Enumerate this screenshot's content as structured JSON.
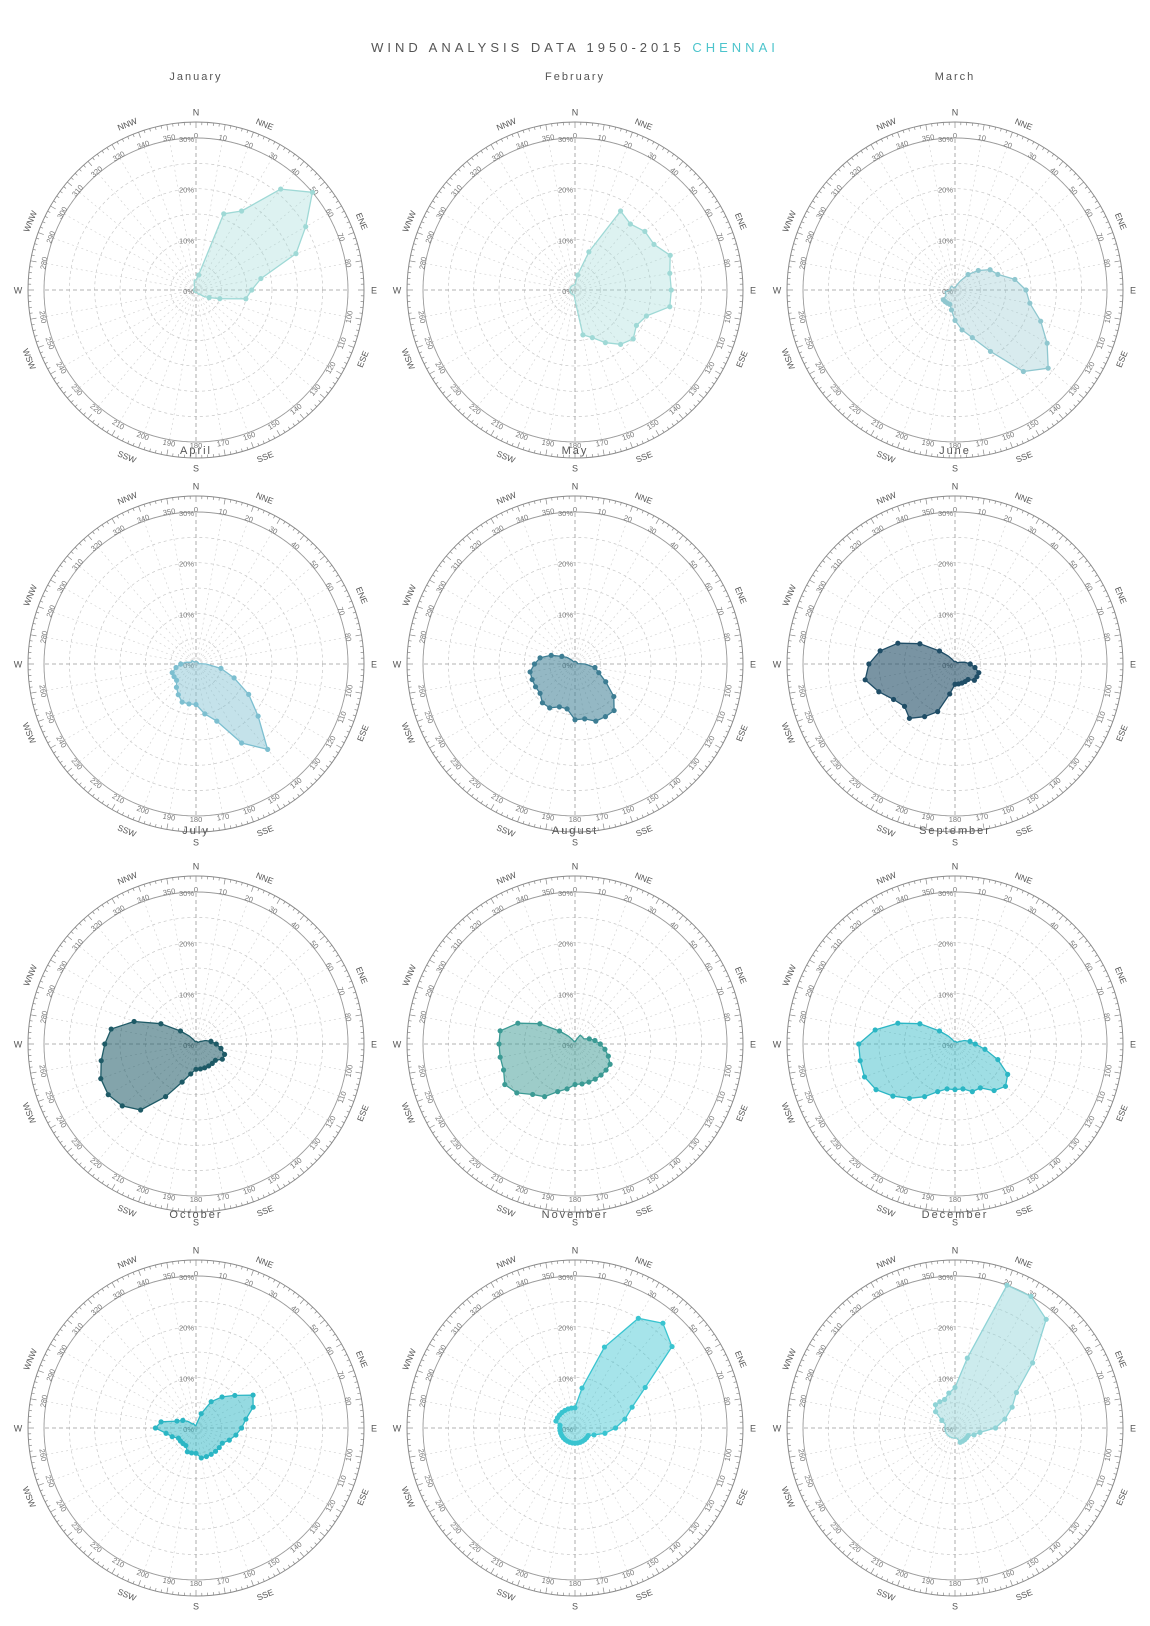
{
  "page": {
    "title_main": "WIND ANALYSIS DATA 1950-2015",
    "title_city": "CHENNAI"
  },
  "chart_common": {
    "type": "radar",
    "radial_ticks": [
      "0%",
      "10%",
      "20%",
      "30%"
    ],
    "radial_max": 30,
    "degree_ticks": [
      0,
      10,
      20,
      30,
      40,
      50,
      60,
      70,
      80,
      90,
      100,
      110,
      120,
      130,
      140,
      150,
      160,
      170,
      180,
      190,
      200,
      210,
      220,
      230,
      240,
      250,
      260,
      270,
      280,
      290,
      300,
      310,
      320,
      330,
      340,
      350
    ],
    "compass_labels": [
      {
        "label": "N",
        "deg": 0
      },
      {
        "label": "NNE",
        "deg": 22.5
      },
      {
        "label": "ENE",
        "deg": 67.5
      },
      {
        "label": "E",
        "deg": 90
      },
      {
        "label": "ESE",
        "deg": 112.5
      },
      {
        "label": "SSE",
        "deg": 157.5
      },
      {
        "label": "S",
        "deg": 180
      },
      {
        "label": "SSW",
        "deg": 202.5
      },
      {
        "label": "WSW",
        "deg": 247.5
      },
      {
        "label": "W",
        "deg": 270
      },
      {
        "label": "WNW",
        "deg": 292.5
      },
      {
        "label": "NNW",
        "deg": 337.5
      }
    ],
    "direction_degrees": [
      0,
      10,
      20,
      30,
      40,
      50,
      60,
      70,
      80,
      90,
      100,
      110,
      120,
      130,
      140,
      150,
      160,
      170,
      180,
      190,
      200,
      210,
      220,
      230,
      240,
      250,
      260,
      270,
      280,
      290,
      300,
      310,
      320,
      330,
      340,
      350
    ],
    "grid": true
  },
  "chart_data": [
    {
      "type": "radar",
      "title": "January",
      "color": "#9fd9d6",
      "fill_opacity": 0.35,
      "values": [
        2,
        3,
        16,
        18,
        26,
        30,
        25,
        21,
        13,
        11,
        10,
        5,
        3,
        2,
        1,
        1,
        0.5,
        0.5,
        0.5,
        0.5,
        0.5,
        0.5,
        0.5,
        0.5,
        0.5,
        0.5,
        0.5,
        0.5,
        0.5,
        0.5,
        0.5,
        0.5,
        0.5,
        0.5,
        1,
        2
      ]
    },
    {
      "type": "radar",
      "title": "February",
      "color": "#9fd9d6",
      "fill_opacity": 0.35,
      "values": [
        1,
        3,
        8,
        18,
        17,
        18,
        18,
        20,
        19,
        19,
        19,
        15,
        14,
        15,
        14,
        12,
        10,
        9,
        2,
        1,
        1,
        1,
        1,
        1,
        1,
        1,
        1,
        1,
        1,
        1,
        1,
        1,
        1,
        1,
        1,
        1
      ]
    },
    {
      "type": "radar",
      "title": "March",
      "color": "#8fc7cf",
      "fill_opacity": 0.35,
      "values": [
        0.5,
        0.5,
        1,
        2,
        4,
        6,
        8,
        9,
        12,
        14,
        15,
        18,
        21,
        24,
        21,
        14,
        10,
        8,
        6,
        4,
        3,
        3,
        3,
        3,
        2,
        2,
        2,
        1,
        1,
        1,
        1,
        1,
        1,
        0.5,
        0.5,
        0.5
      ]
    },
    {
      "type": "radar",
      "title": "April",
      "color": "#7dbfd0",
      "fill_opacity": 0.45,
      "values": [
        0.5,
        0.5,
        0.5,
        0.5,
        0.5,
        0.5,
        0.5,
        0.5,
        0.5,
        2,
        5,
        8,
        12,
        16,
        22,
        18,
        12,
        10,
        8,
        8,
        8,
        7,
        6,
        5,
        5,
        5,
        4,
        3,
        2,
        1,
        1,
        1,
        0.5,
        0.5,
        0.5,
        0.5
      ]
    },
    {
      "type": "radar",
      "title": "May",
      "color": "#3d7d93",
      "fill_opacity": 0.55,
      "values": [
        0.5,
        0.5,
        0.5,
        0.5,
        0.5,
        0.5,
        0.5,
        0.5,
        0.5,
        2,
        4,
        5,
        7,
        10,
        12,
        12,
        12,
        11,
        11,
        9,
        9,
        10,
        10,
        9,
        9,
        9,
        9,
        8,
        7,
        5,
        3,
        2,
        1,
        0.5,
        0.5,
        0.5
      ]
    },
    {
      "type": "radar",
      "title": "June",
      "color": "#1f4d66",
      "fill_opacity": 0.6,
      "values": [
        0.5,
        0.5,
        0.5,
        0.5,
        0.5,
        0.5,
        0.5,
        1,
        2,
        3,
        4,
        5,
        5,
        5,
        4,
        4,
        4,
        4,
        4,
        6,
        10,
        12,
        14,
        13,
        14,
        16,
        18,
        17,
        15,
        12,
        8,
        4,
        2,
        1,
        0.5,
        0.5
      ]
    },
    {
      "type": "radar",
      "title": "July",
      "color": "#1e5a66",
      "fill_opacity": 0.55,
      "values": [
        0.5,
        0.5,
        0.5,
        0.5,
        0.5,
        0.5,
        1,
        2,
        3,
        4,
        5,
        6,
        6,
        5,
        5,
        5,
        5,
        5,
        5,
        6,
        8,
        12,
        17,
        19,
        20,
        20,
        19,
        18,
        17,
        13,
        8,
        4,
        2,
        1,
        0.5,
        0.5
      ]
    },
    {
      "type": "radar",
      "title": "August",
      "color": "#3b9a94",
      "fill_opacity": 0.5,
      "values": [
        0.5,
        0.5,
        1,
        2,
        2,
        2,
        2,
        3,
        4,
        5,
        6,
        7,
        8,
        8,
        8,
        8,
        8,
        8,
        8,
        9,
        10,
        12,
        13,
        15,
        16,
        15,
        15,
        15,
        15,
        12,
        8,
        4,
        2,
        1,
        0.5,
        0.5
      ]
    },
    {
      "type": "radar",
      "title": "September",
      "color": "#2bb6c4",
      "fill_opacity": 0.45,
      "values": [
        0.5,
        0.5,
        0.5,
        0.5,
        0.5,
        0.5,
        1,
        2,
        3,
        4,
        6,
        9,
        12,
        13,
        12,
        10,
        10,
        9,
        9,
        9,
        10,
        12,
        14,
        16,
        18,
        19,
        19,
        19,
        16,
        12,
        8,
        4,
        2,
        1,
        0.5,
        0.5
      ]
    },
    {
      "type": "radar",
      "title": "October",
      "color": "#2bb6c4",
      "fill_opacity": 0.5,
      "values": [
        0.5,
        1,
        3,
        6,
        8,
        10,
        13,
        12,
        10,
        9,
        8,
        7,
        6,
        6,
        6,
        6,
        6,
        6,
        5,
        5,
        5,
        4,
        4,
        4,
        4,
        5,
        6,
        8,
        7,
        4,
        3,
        2,
        1,
        1,
        0.5,
        0.5
      ]
    },
    {
      "type": "radar",
      "title": "November",
      "color": "#39c4d0",
      "fill_opacity": 0.45,
      "values": [
        4,
        8,
        17,
        25,
        27,
        25,
        16,
        12,
        10,
        8,
        6,
        4,
        3,
        3,
        3,
        3,
        3,
        3,
        3,
        3,
        3,
        3,
        3,
        3,
        3,
        3,
        3,
        3,
        3,
        4,
        4,
        4,
        4,
        4,
        4,
        4
      ]
    },
    {
      "type": "radar",
      "title": "December",
      "color": "#8fd3d6",
      "fill_opacity": 0.45,
      "values": [
        8,
        14,
        30,
        30,
        28,
        20,
        14,
        12,
        10,
        8,
        5,
        4,
        3,
        3,
        3,
        3,
        3,
        2,
        2,
        2,
        2,
        2,
        2,
        2,
        2,
        2,
        2,
        2,
        2,
        2,
        3,
        5,
        6,
        6,
        6,
        7
      ]
    }
  ]
}
